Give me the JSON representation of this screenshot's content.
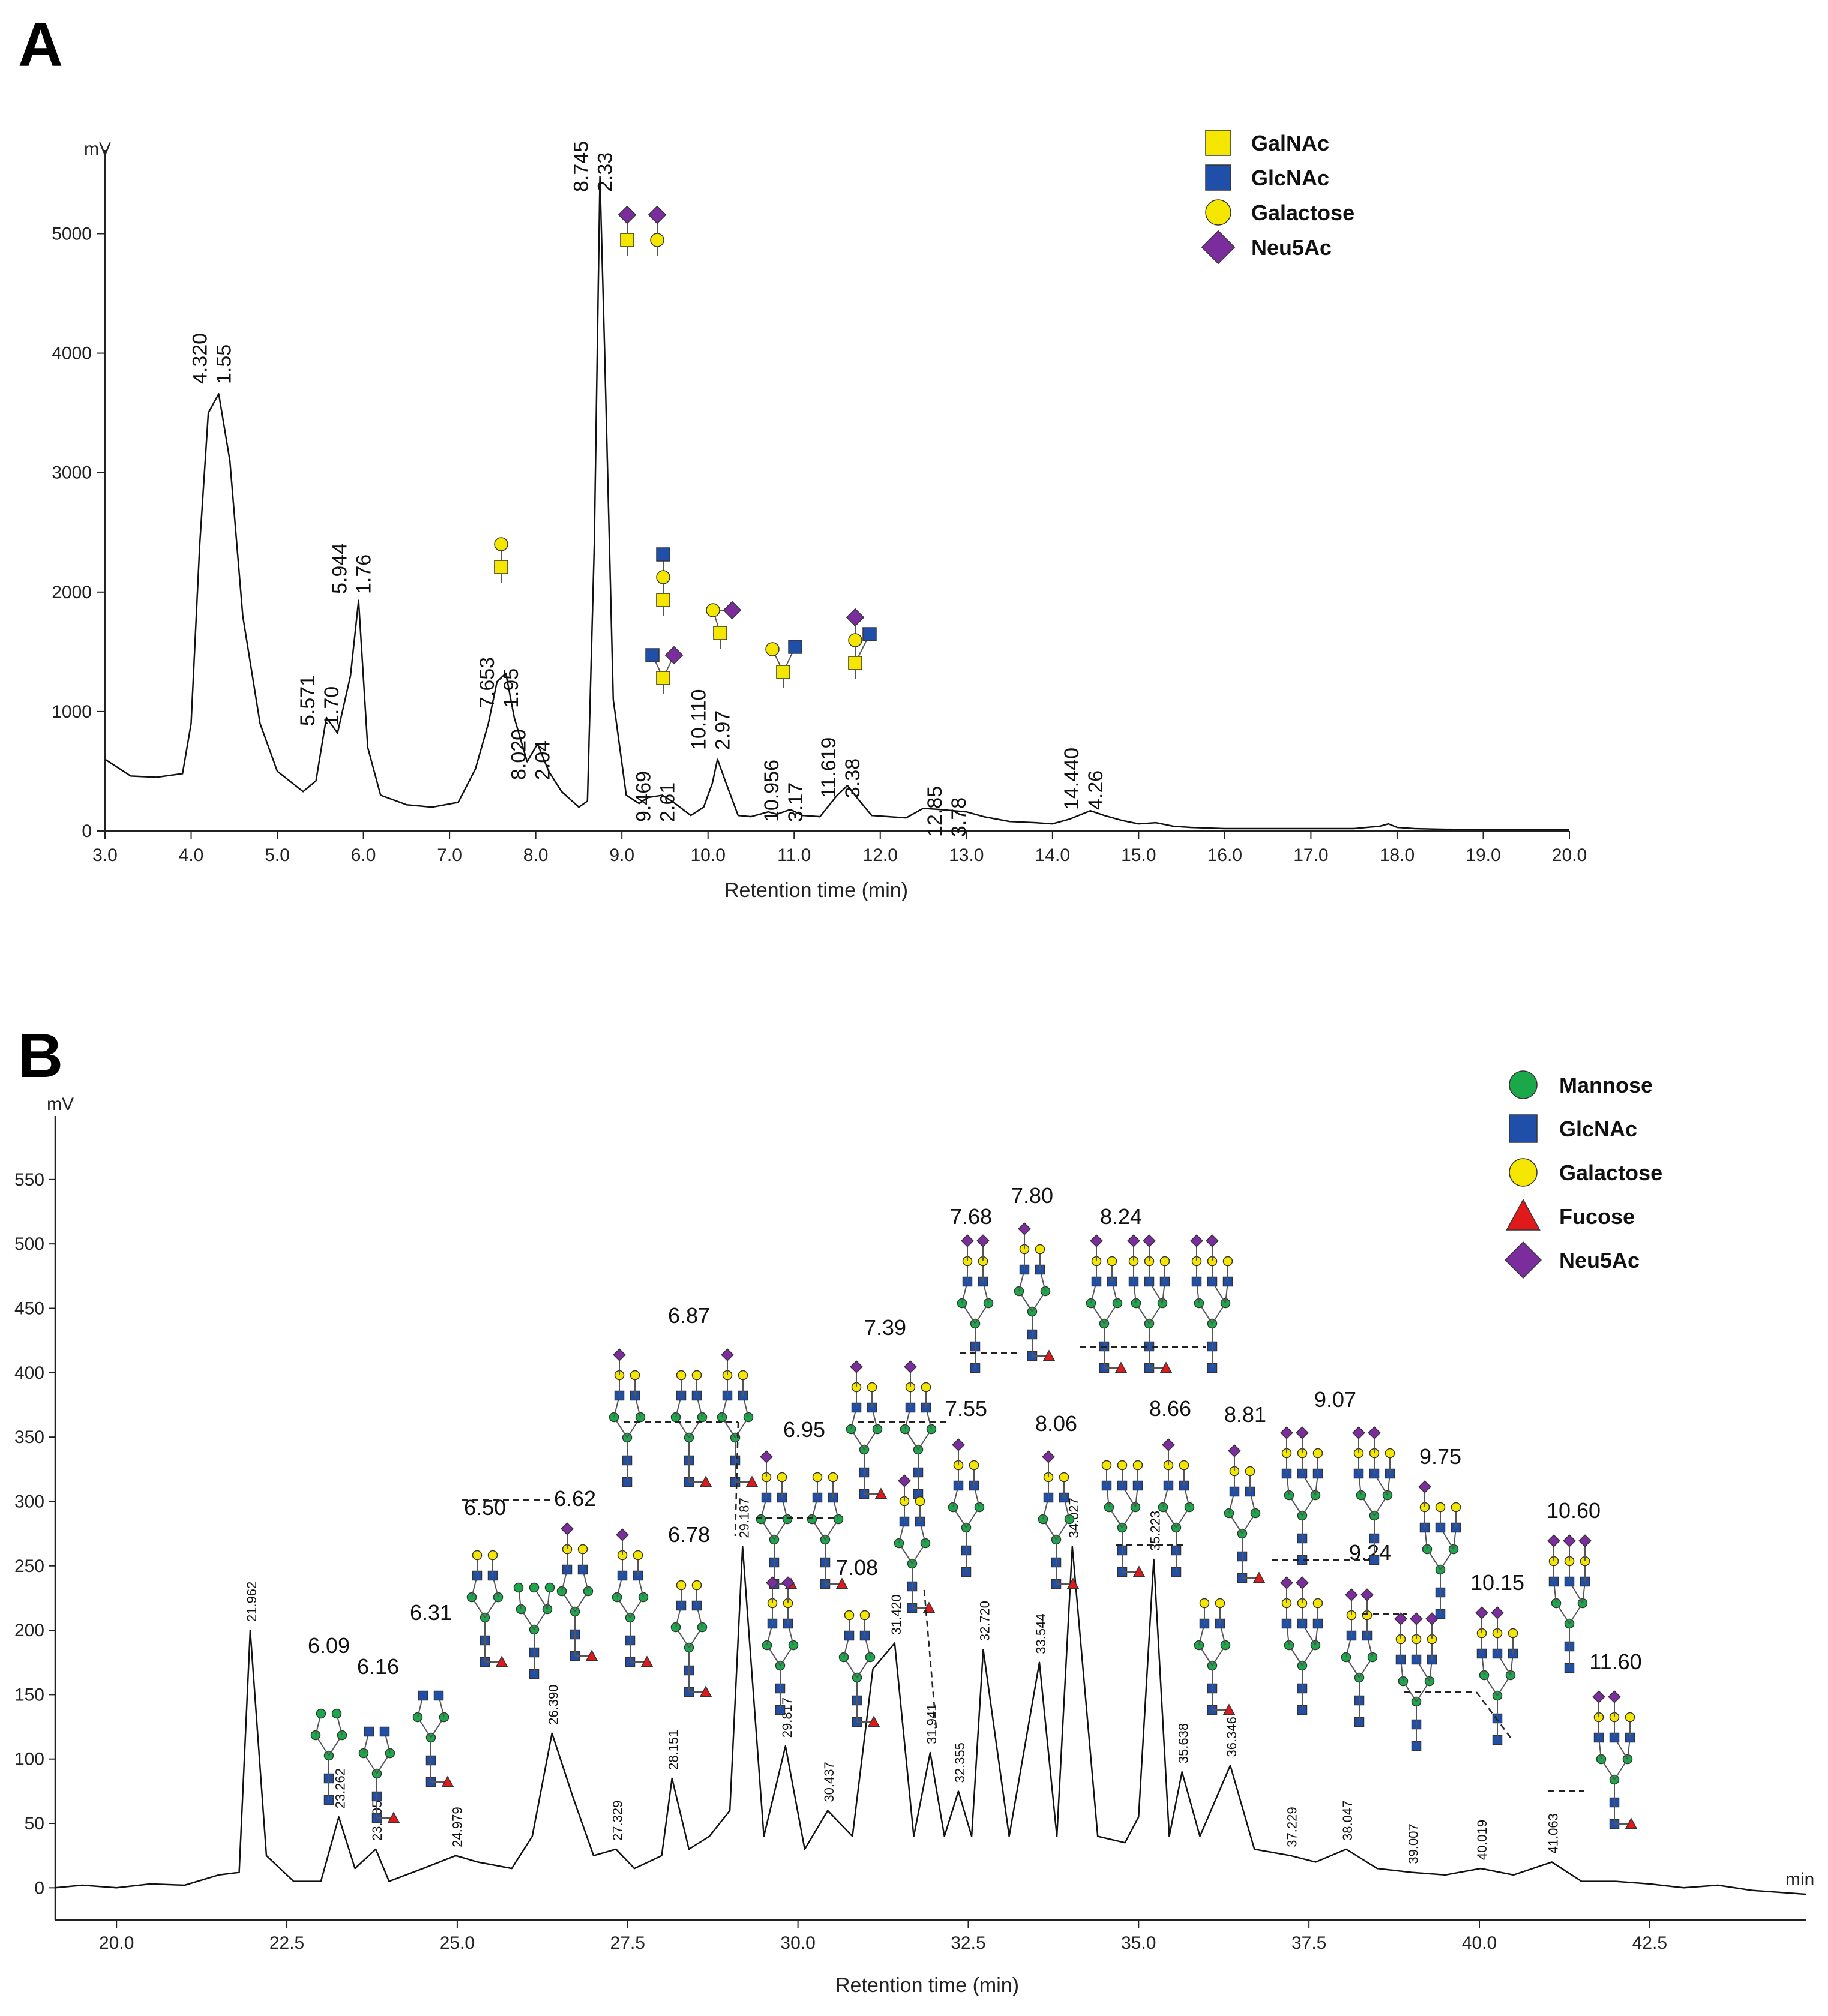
{
  "colors": {
    "galnac": "#f5e600",
    "glcnac": "#1f4fa8",
    "galactose": "#f5e600",
    "neu5ac": "#7b2d9e",
    "mannose": "#1aa84a",
    "fucose": "#e01a1a",
    "trace": "#111111"
  },
  "panels": {
    "A": {
      "letter": "A",
      "yunit": "mV",
      "legend": [
        {
          "name": "GalNAc",
          "symbol": "square",
          "color": "#f5e600"
        },
        {
          "name": "GlcNAc",
          "symbol": "square",
          "color": "#1f4fa8"
        },
        {
          "name": "Galactose",
          "symbol": "circle",
          "color": "#f5e600"
        },
        {
          "name": "Neu5Ac",
          "symbol": "diamond",
          "color": "#7b2d9e"
        }
      ]
    },
    "B": {
      "letter": "B",
      "yunit": "mV",
      "legend": [
        {
          "name": "Mannose",
          "symbol": "circle",
          "color": "#1aa84a"
        },
        {
          "name": "GlcNAc",
          "symbol": "square",
          "color": "#1f4fa8"
        },
        {
          "name": "Galactose",
          "symbol": "circle",
          "color": "#f5e600"
        },
        {
          "name": "Fucose",
          "symbol": "triangle",
          "color": "#e01a1a"
        },
        {
          "name": "Neu5Ac",
          "symbol": "diamond",
          "color": "#7b2d9e"
        }
      ]
    }
  },
  "chart_data": [
    {
      "type": "line",
      "panel": "A",
      "xlabel": "Retention time (min)",
      "ylabel": "mV",
      "xlim": [
        3.0,
        20.0
      ],
      "ylim": [
        0,
        5600
      ],
      "xticks": [
        "3.0",
        "4.0",
        "5.0",
        "6.0",
        "7.0",
        "8.0",
        "9.0",
        "10.0",
        "11.0",
        "12.0",
        "13.0",
        "14.0",
        "15.0",
        "16.0",
        "17.0",
        "18.0",
        "19.0",
        "20.0"
      ],
      "yticks": [
        "0",
        "1000",
        "2000",
        "3000",
        "4000",
        "5000"
      ],
      "x": [
        3.0,
        3.3,
        3.6,
        3.9,
        4.0,
        4.1,
        4.2,
        4.32,
        4.45,
        4.6,
        4.8,
        5.0,
        5.3,
        5.45,
        5.571,
        5.7,
        5.85,
        5.944,
        6.05,
        6.2,
        6.5,
        6.8,
        7.1,
        7.3,
        7.45,
        7.55,
        7.653,
        7.75,
        7.9,
        8.02,
        8.15,
        8.3,
        8.5,
        8.6,
        8.68,
        8.745,
        8.8,
        8.9,
        9.05,
        9.2,
        9.3,
        9.469,
        9.6,
        9.8,
        9.95,
        10.05,
        10.11,
        10.2,
        10.35,
        10.5,
        10.7,
        10.8,
        10.956,
        11.1,
        11.3,
        11.5,
        11.619,
        11.75,
        11.9,
        12.1,
        12.3,
        12.5,
        12.7,
        12.85,
        13.0,
        13.2,
        13.5,
        13.8,
        14.0,
        14.2,
        14.44,
        14.6,
        14.8,
        15.0,
        15.2,
        15.4,
        15.6,
        16.0,
        16.5,
        17.0,
        17.5,
        17.8,
        17.9,
        18.0,
        18.2,
        18.5,
        19.0,
        19.5,
        20.0
      ],
      "values": [
        600,
        460,
        450,
        480,
        900,
        2400,
        3500,
        3660,
        3100,
        1800,
        900,
        500,
        330,
        420,
        950,
        820,
        1300,
        1930,
        700,
        300,
        220,
        200,
        240,
        520,
        900,
        1250,
        1320,
        950,
        580,
        730,
        500,
        330,
        200,
        250,
        2400,
        5480,
        4000,
        1100,
        300,
        230,
        280,
        300,
        240,
        130,
        200,
        400,
        600,
        420,
        130,
        120,
        160,
        140,
        180,
        130,
        120,
        300,
        380,
        260,
        130,
        120,
        110,
        190,
        180,
        170,
        160,
        120,
        80,
        70,
        60,
        100,
        170,
        130,
        90,
        60,
        70,
        40,
        30,
        20,
        20,
        20,
        20,
        40,
        60,
        30,
        20,
        15,
        10,
        10,
        10
      ],
      "peaks": [
        {
          "rt": "4.320",
          "gu": "1.55"
        },
        {
          "rt": "5.571",
          "gu": "1.70"
        },
        {
          "rt": "5.944",
          "gu": "1.76"
        },
        {
          "rt": "7.653",
          "gu": "1.95"
        },
        {
          "rt": "8.020",
          "gu": "2.04"
        },
        {
          "rt": "8.745",
          "gu": "2.33"
        },
        {
          "rt": "9.469",
          "gu": "2.61"
        },
        {
          "rt": "10.110",
          "gu": "2.97"
        },
        {
          "rt": "10.956",
          "gu": "3.17"
        },
        {
          "rt": "11.619",
          "gu": "3.38"
        },
        {
          "rt": "12.85",
          "gu": "3.78"
        },
        {
          "rt": "14.440",
          "gu": "4.26"
        }
      ]
    },
    {
      "type": "line",
      "panel": "B",
      "xlabel": "Retention time (min)",
      "ylabel": "mV",
      "xunit": "min",
      "xlim": [
        19.1,
        44.8
      ],
      "ylim": [
        -25,
        590
      ],
      "xticks": [
        "20.0",
        "22.5",
        "25.0",
        "27.5",
        "30.0",
        "32.5",
        "35.0",
        "37.5",
        "40.0",
        "42.5"
      ],
      "yticks": [
        "0",
        "50",
        "100",
        "150",
        "200",
        "250",
        "300",
        "350",
        "400",
        "450",
        "500",
        "550"
      ],
      "x": [
        19.1,
        19.5,
        20.0,
        20.5,
        21.0,
        21.5,
        21.8,
        21.962,
        22.2,
        22.6,
        23.0,
        23.262,
        23.5,
        23.805,
        24.0,
        24.5,
        24.979,
        25.3,
        25.8,
        26.1,
        26.39,
        26.7,
        27.0,
        27.329,
        27.6,
        28.0,
        28.151,
        28.4,
        28.7,
        29.0,
        29.187,
        29.5,
        29.817,
        30.1,
        30.437,
        30.8,
        31.1,
        31.42,
        31.7,
        31.941,
        32.15,
        32.355,
        32.55,
        32.72,
        33.1,
        33.544,
        33.8,
        34.027,
        34.4,
        34.8,
        35.0,
        35.223,
        35.45,
        35.638,
        35.9,
        36.346,
        36.7,
        37.229,
        37.6,
        38.047,
        38.5,
        39.007,
        39.5,
        40.019,
        40.5,
        41.063,
        41.5,
        42.0,
        42.5,
        43.0,
        43.5,
        44.0,
        44.8
      ],
      "values": [
        0,
        2,
        0,
        3,
        2,
        10,
        12,
        200,
        25,
        5,
        5,
        55,
        15,
        30,
        5,
        15,
        25,
        20,
        15,
        40,
        120,
        70,
        25,
        30,
        15,
        25,
        85,
        30,
        40,
        60,
        265,
        40,
        110,
        30,
        60,
        40,
        170,
        190,
        40,
        105,
        40,
        75,
        40,
        185,
        40,
        175,
        40,
        265,
        40,
        35,
        55,
        255,
        40,
        90,
        40,
        95,
        30,
        25,
        20,
        30,
        15,
        12,
        10,
        15,
        10,
        20,
        5,
        5,
        3,
        0,
        2,
        -2,
        -5
      ],
      "peaks": [
        "21.962",
        "23.262",
        "23.805",
        "24.979",
        "26.390",
        "27.329",
        "28.151",
        "29.187",
        "29.817",
        "30.437",
        "31.420",
        "31.941",
        "32.355",
        "32.720",
        "33.544",
        "34.027",
        "35.223",
        "35.638",
        "36.346",
        "37.229",
        "38.047",
        "39.007",
        "40.019",
        "41.063"
      ],
      "gu_labels": [
        "6.09",
        "6.16",
        "6.31",
        "6.50",
        "6.62",
        "6.78",
        "6.87",
        "6.95",
        "7.08",
        "7.39",
        "7.55",
        "7.68",
        "7.80",
        "8.06",
        "8.24",
        "8.66",
        "8.81",
        "9.07",
        "9.24",
        "9.75",
        "10.15",
        "10.60",
        "11.60"
      ]
    }
  ]
}
